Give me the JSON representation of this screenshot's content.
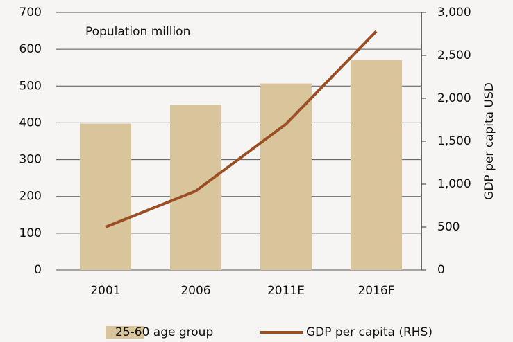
{
  "chart_data": {
    "type": "bar",
    "annotation": "Population million",
    "y2_label": "GDP per capita USD",
    "categories": [
      "2001",
      "2006",
      "2011E",
      "2016F"
    ],
    "series": [
      {
        "name": "25-60 age group",
        "type": "bar",
        "color": "#d8c59c",
        "values": [
          398,
          449,
          507,
          571
        ]
      },
      {
        "name": "GDP per capita (RHS)",
        "type": "line",
        "axis": "y2",
        "color": "#9b4e24",
        "values": [
          500,
          920,
          1700,
          2780
        ]
      }
    ],
    "ylim": [
      0,
      700
    ],
    "yticks": [
      0,
      100,
      200,
      300,
      400,
      500,
      600,
      700
    ],
    "y2lim": [
      0,
      3000
    ],
    "y2ticks": [
      0,
      500,
      {
        "value": 1000,
        "label": "1,000"
      },
      {
        "value": 1500,
        "label": "1,500"
      },
      {
        "value": 2000,
        "label": "2,000"
      },
      {
        "value": 2500,
        "label": "2,500"
      },
      {
        "value": 3000,
        "label": "3,000"
      }
    ],
    "grid": true,
    "legend": "bottom"
  }
}
